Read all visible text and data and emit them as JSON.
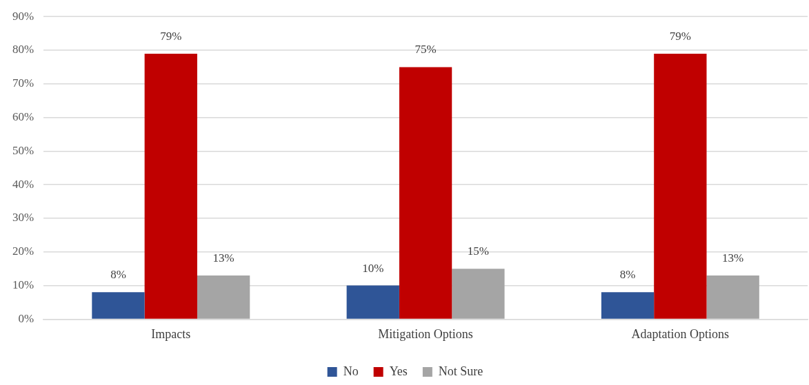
{
  "chart_data": {
    "type": "bar",
    "categories": [
      "Impacts",
      "Mitigation Options",
      "Adaptation Options"
    ],
    "series": [
      {
        "name": "No",
        "color": "#2f5597",
        "values": [
          8,
          10,
          8
        ],
        "value_labels": [
          "8%",
          "10%",
          "8%"
        ]
      },
      {
        "name": "Yes",
        "color": "#c00000",
        "values": [
          79,
          75,
          79
        ],
        "value_labels": [
          "79%",
          "75%",
          "79%"
        ]
      },
      {
        "name": "Not Sure",
        "color": "#a5a5a5",
        "values": [
          13,
          15,
          13
        ],
        "value_labels": [
          "13%",
          "15%",
          "13%"
        ]
      }
    ],
    "ylim": [
      0,
      90
    ],
    "yticks": [
      {
        "value": 0,
        "label": "0%"
      },
      {
        "value": 10,
        "label": "10%"
      },
      {
        "value": 20,
        "label": "20%"
      },
      {
        "value": 30,
        "label": "30%"
      },
      {
        "value": 40,
        "label": "40%"
      },
      {
        "value": 50,
        "label": "50%"
      },
      {
        "value": 60,
        "label": "60%"
      },
      {
        "value": 70,
        "label": "70%"
      },
      {
        "value": 80,
        "label": "80%"
      },
      {
        "value": 90,
        "label": "90%"
      }
    ],
    "grid": "y",
    "legend": "bottom"
  }
}
